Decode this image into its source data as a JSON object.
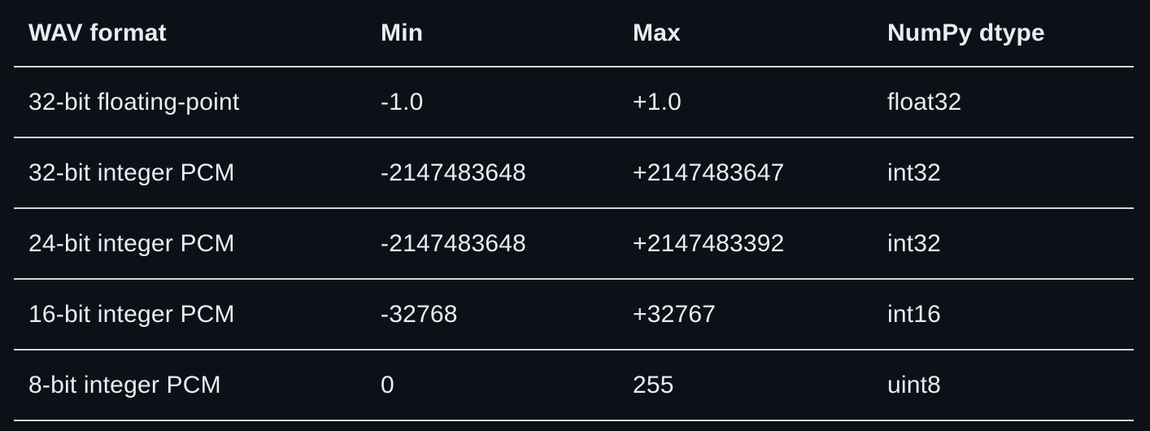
{
  "table": {
    "headers": [
      "WAV format",
      "Min",
      "Max",
      "NumPy dtype"
    ],
    "rows": [
      [
        "32-bit floating-point",
        "-1.0",
        "+1.0",
        "float32"
      ],
      [
        "32-bit integer PCM",
        "-2147483648",
        "+2147483647",
        "int32"
      ],
      [
        "24-bit integer PCM",
        "-2147483648",
        "+2147483392",
        "int32"
      ],
      [
        "16-bit integer PCM",
        "-32768",
        "+32767",
        "int16"
      ],
      [
        "8-bit integer PCM",
        "0",
        "255",
        "uint8"
      ]
    ]
  },
  "colors": {
    "background": "#0d1117",
    "text": "#e6edf3",
    "rule": "#cfd6de"
  }
}
